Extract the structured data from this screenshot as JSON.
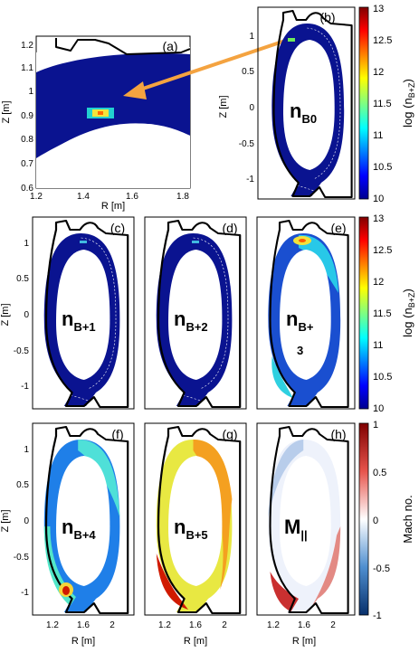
{
  "panels": {
    "a": {
      "label": "(a)",
      "y_ticks": [
        "1.2",
        "1.1",
        "1",
        "0.9",
        "0.8",
        "0.7",
        "0.6"
      ],
      "x_ticks": [
        "1.2",
        "1.4",
        "1.6",
        "1.8"
      ],
      "x_axis": "R [m]",
      "y_axis": "Z [m]"
    },
    "b": {
      "label": "(b)",
      "y_ticks": [
        "1",
        "0.5",
        "0",
        "-0.5",
        "-1"
      ],
      "y_axis": "Z [m]",
      "name_main": "n",
      "name_sub": "B0"
    },
    "c": {
      "label": "(c)",
      "name_main": "n",
      "name_sub": "B+1"
    },
    "d": {
      "label": "(d)",
      "name_main": "n",
      "name_sub": "B+2"
    },
    "e": {
      "label": "(e)",
      "name_main": "n",
      "name_sub": "B+",
      "name_sub2": "3"
    },
    "f": {
      "label": "(f)",
      "name_main": "n",
      "name_sub": "B+4"
    },
    "g": {
      "label": "(g)",
      "name_main": "n",
      "name_sub": "B+5"
    },
    "h": {
      "label": "(h)",
      "name_main": "M",
      "name_sub": "||"
    },
    "row_y_ticks": [
      "1",
      "0.5",
      "0",
      "-0.5",
      "-1"
    ],
    "row_y_axis": "Z [m]",
    "bottom_x_ticks": [
      "1.2",
      "1.6",
      "2"
    ],
    "bottom_x_axis": "R [m]"
  },
  "colorbars": {
    "top": {
      "ticks": [
        "13",
        "12.5",
        "12",
        "11.5",
        "11",
        "10.5",
        "10"
      ],
      "label": "log (n",
      "label_sub": "B+Z",
      "label_end": ")"
    },
    "mid": {
      "ticks": [
        "13",
        "12.5",
        "12",
        "11.5",
        "11",
        "10.5",
        "10"
      ],
      "label": "log (n",
      "label_sub": "B+Z",
      "label_end": ")"
    },
    "bottom": {
      "ticks": [
        "1",
        "0.5",
        "0",
        "-0.5",
        "-1"
      ],
      "label": "Mach no."
    }
  },
  "colors": {
    "dark_blue": "#0a1390",
    "arrow": "#f4a340"
  }
}
